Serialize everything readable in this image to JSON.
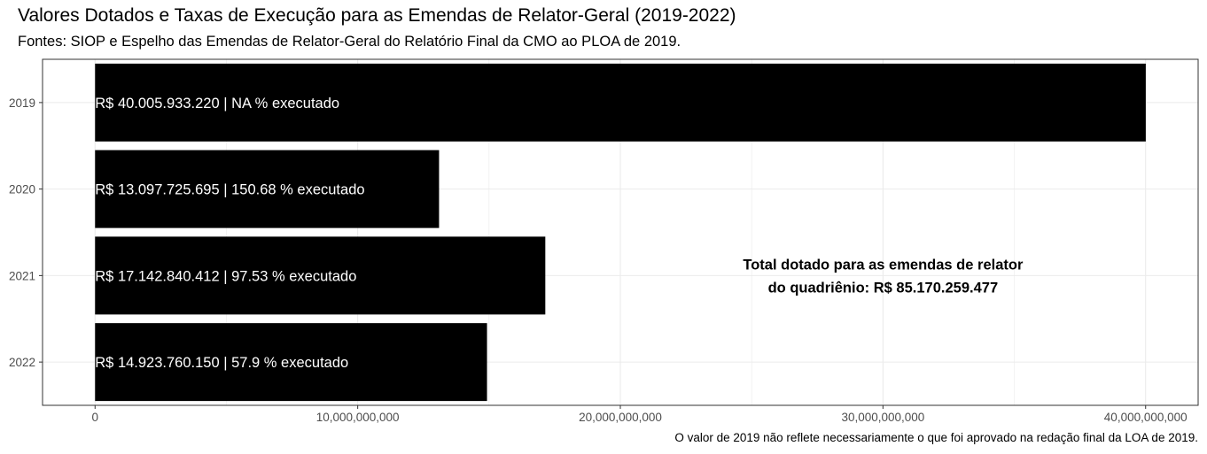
{
  "chart_data": {
    "type": "bar",
    "orientation": "horizontal",
    "title": "Valores Dotados e Taxas de Execução para as Emendas de Relator-Geral (2019-2022)",
    "subtitle": "Fontes: SIOP e Espelho das Emendas de Relator-Geral do Relatório Final da CMO ao PLOA de 2019.",
    "caption": "O valor de 2019 não reflete necessariamente o que foi aprovado na redação final da LOA de 2019.",
    "categories": [
      "2019",
      "2020",
      "2021",
      "2022"
    ],
    "values": [
      40005933220,
      13097725695,
      17142840412,
      14923760150
    ],
    "bar_labels": [
      "R$ 40.005.933.220 | NA % executado",
      "R$ 13.097.725.695 | 150.68 % executado",
      "R$ 17.142.840.412 | 97.53 % executado",
      "R$ 14.923.760.150 | 57.9 % executado"
    ],
    "x_ticks": [
      0,
      10000000000,
      20000000000,
      30000000000,
      40000000000
    ],
    "x_tick_labels": [
      "0",
      "10,000,000,000",
      "20,000,000,000",
      "30,000,000,000",
      "40,000,000,000"
    ],
    "xlim": [
      -2000000000,
      42000000000
    ],
    "annotation": [
      "Total dotado para as emendas de relator",
      "do quadriênio: R$ 85.170.259.477"
    ],
    "annotation_pos": {
      "x": 30000000000,
      "category": "2021"
    },
    "grid": true,
    "bar_color": "#000000"
  }
}
